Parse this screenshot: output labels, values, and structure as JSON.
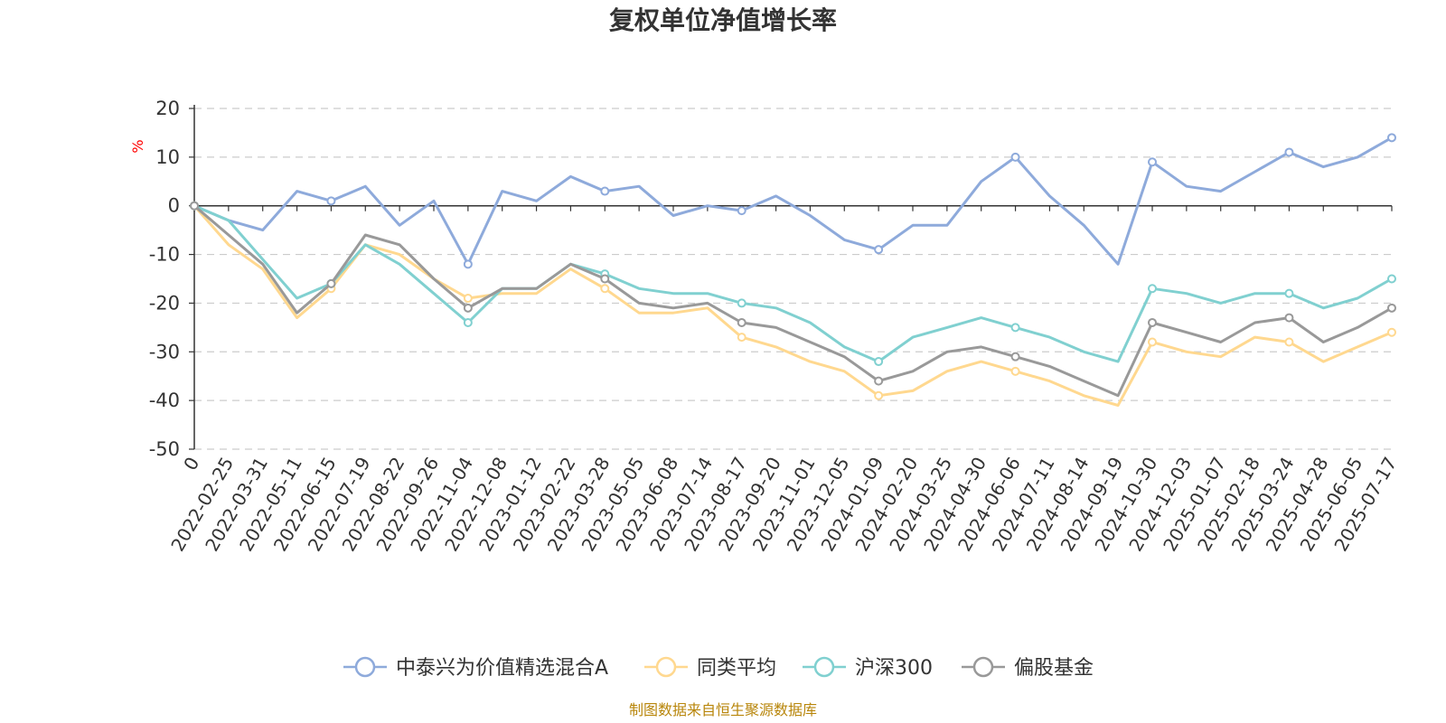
{
  "chart_data": {
    "type": "line",
    "title": "复权单位净值增长率",
    "ylabel": "%",
    "ylim": [
      -50,
      20
    ],
    "yticks": [
      20,
      10,
      0,
      -10,
      -20,
      -30,
      -40,
      -50
    ],
    "grid": true,
    "legend_position": "bottom",
    "x": [
      "0",
      "2022-02-25",
      "2022-03-31",
      "2022-05-11",
      "2022-06-15",
      "2022-07-19",
      "2022-08-22",
      "2022-09-26",
      "2022-11-04",
      "2022-12-08",
      "2023-01-12",
      "2023-02-22",
      "2023-03-28",
      "2023-05-05",
      "2023-06-08",
      "2023-07-14",
      "2023-08-17",
      "2023-09-20",
      "2023-11-01",
      "2023-12-05",
      "2024-01-09",
      "2024-02-20",
      "2024-03-25",
      "2024-04-30",
      "2024-06-06",
      "2024-07-11",
      "2024-08-14",
      "2024-09-19",
      "2024-10-30",
      "2024-12-03",
      "2025-01-07",
      "2025-02-18",
      "2025-03-24",
      "2025-04-28",
      "2025-06-05",
      "2025-07-17"
    ],
    "series": [
      {
        "name": "中泰兴为价值精选混合A",
        "color": "#8eaadb",
        "values": [
          0,
          -3,
          -5,
          3,
          1,
          4,
          -4,
          1,
          -12,
          3,
          1,
          6,
          3,
          4,
          -2,
          0,
          -1,
          2,
          -2,
          -7,
          -9,
          -4,
          -4,
          5,
          10,
          2,
          -4,
          -12,
          9,
          4,
          3,
          7,
          11,
          8,
          10,
          14
        ]
      },
      {
        "name": "同类平均",
        "color": "#ffd88f",
        "values": [
          0,
          -8,
          -13,
          -23,
          -17,
          -8,
          -10,
          -15,
          -19,
          -18,
          -18,
          -13,
          -17,
          -22,
          -22,
          -21,
          -27,
          -29,
          -32,
          -34,
          -39,
          -38,
          -34,
          -32,
          -34,
          -36,
          -39,
          -41,
          -28,
          -30,
          -31,
          -27,
          -28,
          -32,
          -29,
          -26
        ]
      },
      {
        "name": "沪深300",
        "color": "#80d0d0",
        "values": [
          0,
          -3,
          -11,
          -19,
          -16,
          -8,
          -12,
          -18,
          -24,
          -17,
          -17,
          -12,
          -14,
          -17,
          -18,
          -18,
          -20,
          -21,
          -24,
          -29,
          -32,
          -27,
          -25,
          -23,
          -25,
          -27,
          -30,
          -32,
          -17,
          -18,
          -20,
          -18,
          -18,
          -21,
          -19,
          -15
        ]
      },
      {
        "name": "偏股基金",
        "color": "#999999",
        "values": [
          0,
          -6,
          -12,
          -22,
          -16,
          -6,
          -8,
          -15,
          -21,
          -17,
          -17,
          -12,
          -15,
          -20,
          -21,
          -20,
          -24,
          -25,
          -28,
          -31,
          -36,
          -34,
          -30,
          -29,
          -31,
          -33,
          -36,
          -39,
          -24,
          -26,
          -28,
          -24,
          -23,
          -28,
          -25,
          -21
        ]
      }
    ]
  },
  "source_note": "制图数据来自恒生聚源数据库"
}
